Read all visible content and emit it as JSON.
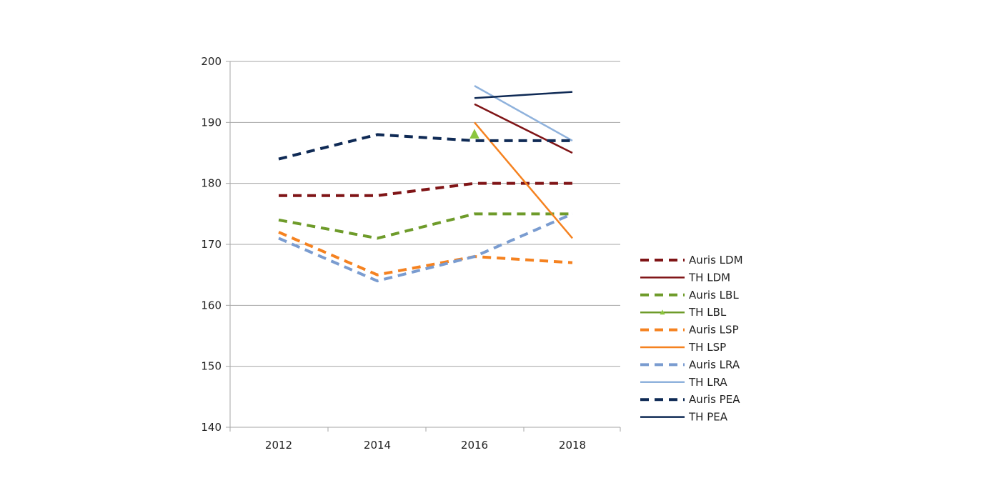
{
  "chart_data": {
    "type": "line",
    "title": "",
    "xlabel": "",
    "ylabel": "",
    "x": [
      "2012",
      "2014",
      "2016",
      "2018"
    ],
    "ylim": [
      140,
      200
    ],
    "yticks": [
      140,
      150,
      160,
      170,
      180,
      190,
      200
    ],
    "grid": "horizontal",
    "legend_position": "right",
    "series": [
      {
        "name": "Auris LDM",
        "values": [
          178,
          178,
          180,
          180
        ],
        "color": "#7f1416",
        "style": "dashed"
      },
      {
        "name": "TH LDM",
        "values": [
          null,
          null,
          193,
          185
        ],
        "color": "#7f1416",
        "style": "solid"
      },
      {
        "name": "Auris LBL",
        "values": [
          174,
          171,
          175,
          175
        ],
        "color": "#6e9b2a",
        "style": "dashed"
      },
      {
        "name": "TH LBL",
        "values": [
          null,
          null,
          188,
          null
        ],
        "color": "#6e9b2a",
        "style": "solid",
        "marker": "triangle"
      },
      {
        "name": "Auris LSP",
        "values": [
          172,
          165,
          168,
          167
        ],
        "color": "#f58220",
        "style": "dashed"
      },
      {
        "name": "TH LSP",
        "values": [
          null,
          null,
          190,
          171
        ],
        "color": "#f58220",
        "style": "solid"
      },
      {
        "name": "Auris LRA",
        "values": [
          171,
          164,
          168,
          175
        ],
        "color": "#7a9cd0",
        "style": "dashed"
      },
      {
        "name": "TH LRA",
        "values": [
          null,
          null,
          196,
          187
        ],
        "color": "#8fb2dc",
        "style": "solid"
      },
      {
        "name": "Auris PEA",
        "values": [
          184,
          188,
          187,
          187
        ],
        "color": "#0f2a55",
        "style": "dashed"
      },
      {
        "name": "TH PEA",
        "values": [
          null,
          null,
          194,
          195
        ],
        "color": "#0f2a55",
        "style": "solid"
      }
    ]
  }
}
